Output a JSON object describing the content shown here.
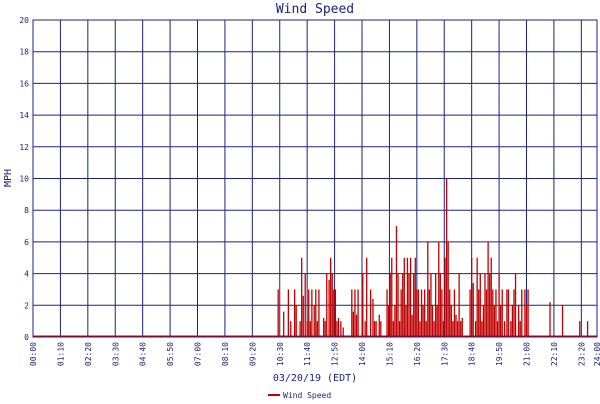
{
  "chart_data": {
    "type": "bar",
    "title": "Wind Speed",
    "xlabel": "03/20/19 (EDT)",
    "ylabel": "MPH",
    "ylim": [
      0,
      20
    ],
    "yticks": [
      0,
      2,
      4,
      6,
      8,
      10,
      12,
      14,
      16,
      18,
      20
    ],
    "xlim": [
      "00:00",
      "24:00"
    ],
    "xticks": [
      "00:00",
      "01:10",
      "02:20",
      "03:30",
      "04:40",
      "05:50",
      "07:00",
      "08:10",
      "09:20",
      "10:30",
      "11:40",
      "12:50",
      "14:00",
      "15:10",
      "16:20",
      "17:30",
      "18:40",
      "19:50",
      "21:00",
      "22:10",
      "23:20",
      "24:00"
    ],
    "grid": true,
    "legend": "bottom",
    "series": [
      {
        "name": "Wind Speed",
        "color": "#c00000",
        "x": [
          "10:26",
          "10:40",
          "10:52",
          "10:58",
          "11:08",
          "11:12",
          "11:22",
          "11:26",
          "11:30",
          "11:35",
          "11:40",
          "11:44",
          "11:48",
          "11:52",
          "11:58",
          "12:02",
          "12:06",
          "12:10",
          "12:22",
          "12:26",
          "12:30",
          "12:36",
          "12:40",
          "12:44",
          "12:48",
          "12:52",
          "12:56",
          "13:00",
          "13:06",
          "13:12",
          "13:34",
          "13:38",
          "13:42",
          "13:46",
          "13:50",
          "14:02",
          "14:08",
          "14:12",
          "14:22",
          "14:28",
          "14:32",
          "14:36",
          "14:44",
          "14:48",
          "15:04",
          "15:08",
          "15:12",
          "15:16",
          "15:20",
          "15:24",
          "15:28",
          "15:32",
          "15:36",
          "15:40",
          "15:44",
          "15:48",
          "15:52",
          "15:56",
          "16:00",
          "16:04",
          "16:08",
          "16:12",
          "16:16",
          "16:20",
          "16:24",
          "16:28",
          "16:32",
          "16:36",
          "16:40",
          "16:44",
          "16:48",
          "16:52",
          "16:56",
          "17:00",
          "17:04",
          "17:08",
          "17:12",
          "17:16",
          "17:20",
          "17:24",
          "17:28",
          "17:32",
          "17:36",
          "17:40",
          "17:44",
          "17:48",
          "17:52",
          "17:56",
          "18:00",
          "18:04",
          "18:08",
          "18:12",
          "18:16",
          "18:36",
          "18:40",
          "18:44",
          "18:50",
          "18:54",
          "18:58",
          "19:02",
          "19:06",
          "19:10",
          "19:14",
          "19:18",
          "19:22",
          "19:26",
          "19:30",
          "19:34",
          "19:38",
          "19:42",
          "19:46",
          "19:50",
          "19:54",
          "19:58",
          "20:04",
          "20:10",
          "20:14",
          "20:20",
          "20:24",
          "20:28",
          "20:32",
          "20:40",
          "20:44",
          "20:48",
          "20:56",
          "21:00",
          "21:04",
          "22:00",
          "22:32",
          "23:16",
          "23:36"
        ],
        "values": [
          3,
          1.6,
          3,
          1,
          3,
          2,
          1,
          5,
          2.6,
          4,
          1,
          3,
          1,
          3,
          2,
          3,
          1,
          3,
          1.2,
          1,
          4,
          3.6,
          5,
          4,
          3,
          3,
          1,
          1.2,
          1,
          0.6,
          3,
          1.6,
          3,
          1.4,
          3,
          4,
          1,
          5,
          3,
          2.4,
          1,
          1,
          1.4,
          1,
          3,
          2,
          4,
          5,
          1,
          2,
          7,
          4,
          1,
          3,
          4,
          5,
          2,
          5,
          4,
          5,
          1.4,
          4,
          5,
          3,
          3,
          1,
          3,
          2,
          3,
          1,
          6,
          3,
          4,
          2,
          1,
          4,
          2,
          6,
          4,
          3,
          1,
          5,
          10,
          6,
          3,
          2,
          1,
          3,
          1.4,
          1,
          4,
          1,
          1.2,
          3,
          5,
          3.4,
          1,
          5,
          3,
          4,
          1,
          2,
          4,
          3,
          6,
          4,
          5,
          3,
          2,
          3,
          1,
          4,
          2,
          3,
          1,
          3,
          3,
          1,
          2,
          3,
          4,
          2,
          1,
          3,
          3,
          2,
          3,
          2.2,
          2,
          1,
          1
        ]
      }
    ]
  }
}
